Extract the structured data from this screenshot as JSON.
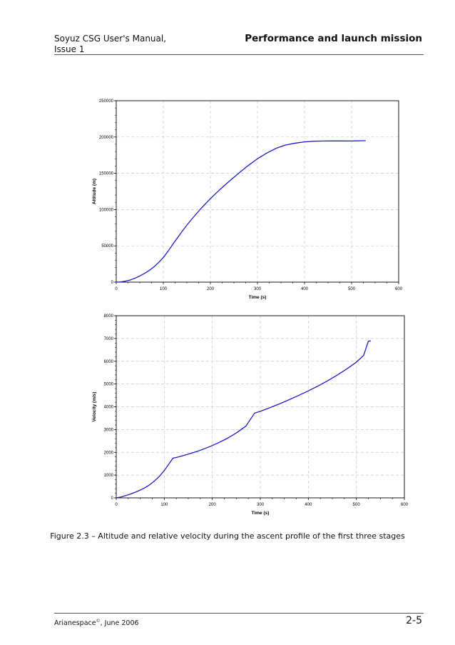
{
  "header": {
    "doc_title": "Soyuz CSG User's Manual,",
    "issue": "Issue 1",
    "section_title": "Performance and launch mission"
  },
  "caption": "Figure 2.3 – Altitude and relative velocity during the ascent profile of the first three stages",
  "footer": {
    "publisher": "Arianespace",
    "copyright_mark": "©",
    "date": ", June 2006",
    "page_number": "2-5"
  },
  "chart_data": [
    {
      "type": "line",
      "xlabel": "Time (s)",
      "ylabel": "Altitude (m)",
      "xlim": [
        0,
        600
      ],
      "ylim": [
        0,
        250000
      ],
      "xticks": [
        0,
        100,
        200,
        300,
        400,
        500,
        600
      ],
      "yticks": [
        0,
        50000,
        100000,
        150000,
        200000,
        250000
      ],
      "grid": true,
      "color": "#1c1cc8",
      "series": [
        {
          "x": [
            0,
            10,
            20,
            30,
            40,
            50,
            60,
            70,
            80,
            90,
            100,
            110,
            120,
            130,
            140,
            150,
            160,
            170,
            180,
            200,
            220,
            240,
            260,
            280,
            300,
            320,
            340,
            360,
            380,
            400,
            420,
            440,
            460,
            480,
            500,
            510,
            530
          ],
          "y": [
            0,
            300,
            1500,
            3000,
            5500,
            8500,
            12000,
            16000,
            21000,
            27000,
            34000,
            42500,
            52000,
            61000,
            70000,
            78500,
            86500,
            94000,
            101500,
            115000,
            127500,
            139000,
            150000,
            160500,
            170000,
            178000,
            184500,
            189000,
            191500,
            193300,
            194200,
            194500,
            194600,
            194600,
            194500,
            194700,
            195000
          ]
        }
      ]
    },
    {
      "type": "line",
      "xlabel": "Time (s)",
      "ylabel": "Velocity (m/s)",
      "xlim": [
        0,
        600
      ],
      "ylim": [
        0,
        8000
      ],
      "xticks": [
        0,
        100,
        200,
        300,
        400,
        500,
        600
      ],
      "yticks": [
        0,
        1000,
        2000,
        3000,
        4000,
        5000,
        6000,
        7000,
        8000
      ],
      "grid": true,
      "color": "#1c1cc8",
      "series": [
        {
          "x": [
            0,
            10,
            20,
            30,
            40,
            50,
            60,
            70,
            80,
            90,
            100,
            110,
            118,
            130,
            150,
            170,
            190,
            210,
            230,
            250,
            270,
            288,
            300,
            320,
            340,
            360,
            380,
            400,
            420,
            440,
            460,
            480,
            500,
            515,
            525,
            530
          ],
          "y": [
            0,
            40,
            100,
            170,
            250,
            340,
            450,
            580,
            750,
            950,
            1200,
            1500,
            1740,
            1800,
            1920,
            2050,
            2210,
            2390,
            2600,
            2850,
            3150,
            3720,
            3800,
            3960,
            4130,
            4310,
            4500,
            4700,
            4910,
            5140,
            5390,
            5660,
            5960,
            6250,
            6880,
            6900
          ]
        }
      ]
    }
  ]
}
